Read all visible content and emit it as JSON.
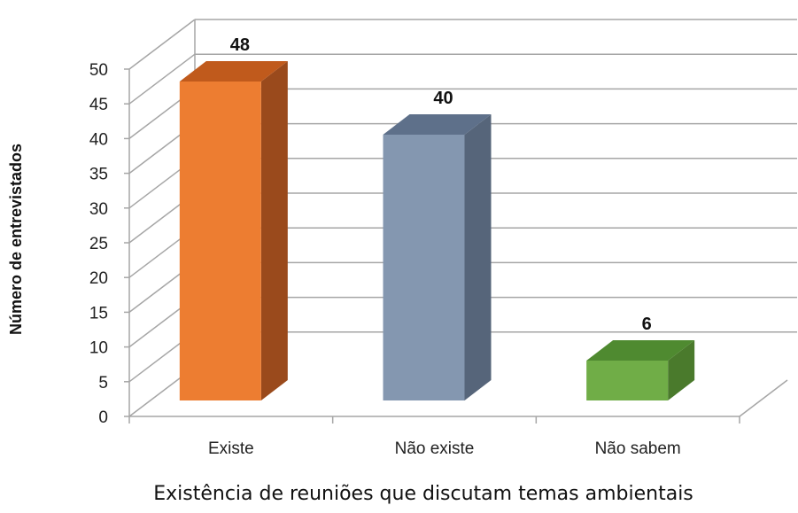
{
  "chart_data": {
    "type": "bar",
    "title": "",
    "xlabel": "Existência de reuniões que discutam temas ambientais",
    "ylabel": "Número de entrevistados",
    "categories": [
      "Existe",
      "Não existe",
      "Não sabem"
    ],
    "values": [
      48,
      40,
      6
    ],
    "data_labels": [
      "48",
      "40",
      "6"
    ],
    "ylim": [
      0,
      50
    ],
    "yticks": [
      "0",
      "5",
      "10",
      "15",
      "20",
      "25",
      "30",
      "35",
      "40",
      "45",
      "50"
    ],
    "grid": true,
    "style": "3d-column",
    "bar_colors": [
      {
        "front": "#ED7D31",
        "top": "#C05A1C",
        "side": "#9A4A1C"
      },
      {
        "front": "#8497B0",
        "top": "#5E708A",
        "side": "#56657A"
      },
      {
        "front": "#70AD47",
        "top": "#4F8A30",
        "side": "#4A7A2C"
      }
    ],
    "grid_color": "#a6a6a6"
  }
}
